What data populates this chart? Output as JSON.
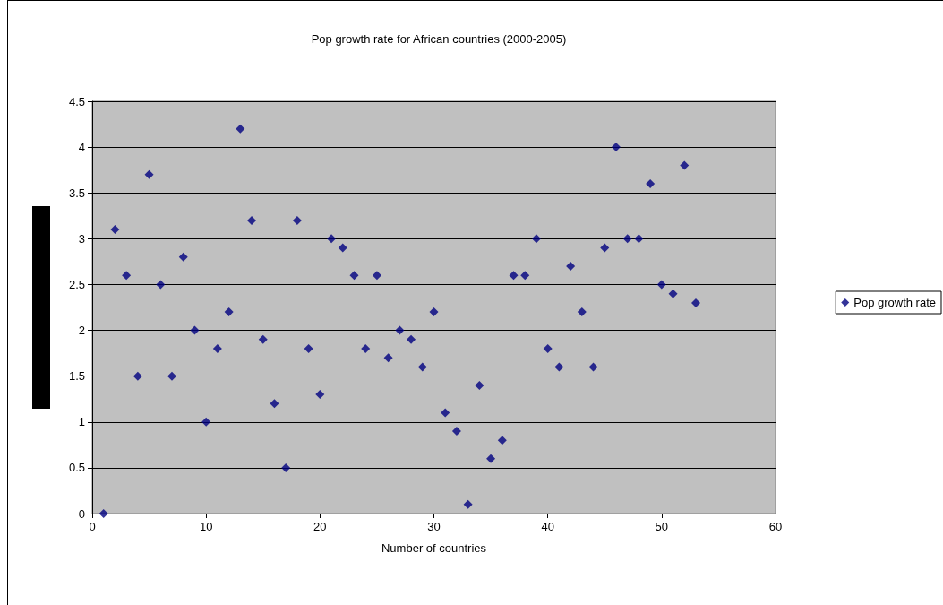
{
  "chart_data": {
    "type": "scatter",
    "title": "Pop growth rate for African countries (2000-2005)",
    "xlabel": "Number of countries",
    "x": [
      1,
      2,
      3,
      4,
      5,
      6,
      7,
      8,
      9,
      10,
      11,
      12,
      13,
      14,
      15,
      16,
      17,
      18,
      19,
      20,
      21,
      22,
      23,
      24,
      25,
      26,
      27,
      28,
      29,
      30,
      31,
      32,
      33,
      34,
      35,
      36,
      37,
      38,
      39,
      40,
      41,
      42,
      43,
      44,
      45,
      46,
      47,
      48,
      49,
      50,
      51,
      52,
      53
    ],
    "series": [
      {
        "name": "Pop growth rate",
        "color": "#000080",
        "values": [
          0,
          3.1,
          2.6,
          1.5,
          3.7,
          2.5,
          1.5,
          2.8,
          2.0,
          1.0,
          1.8,
          2.2,
          4.2,
          3.2,
          1.9,
          1.2,
          0.5,
          3.2,
          1.8,
          1.3,
          3.0,
          2.9,
          2.6,
          1.8,
          2.6,
          1.7,
          2.0,
          1.9,
          1.6,
          2.2,
          1.1,
          0.9,
          0.1,
          1.4,
          0.6,
          0.8,
          2.6,
          2.6,
          3.0,
          1.8,
          1.6,
          2.7,
          2.2,
          1.6,
          2.9,
          4.0,
          3.0,
          3.0,
          3.6,
          2.5,
          2.4,
          3.8,
          2.3
        ]
      }
    ],
    "xlim": [
      0,
      60
    ],
    "xticks": [
      0,
      10,
      20,
      30,
      40,
      50,
      60
    ],
    "ylim": [
      0,
      4.5
    ],
    "yticks": [
      0,
      0.5,
      1,
      1.5,
      2,
      2.5,
      3,
      3.5,
      4,
      4.5
    ],
    "grid": "y",
    "legend": "right",
    "marker": "diamond"
  }
}
